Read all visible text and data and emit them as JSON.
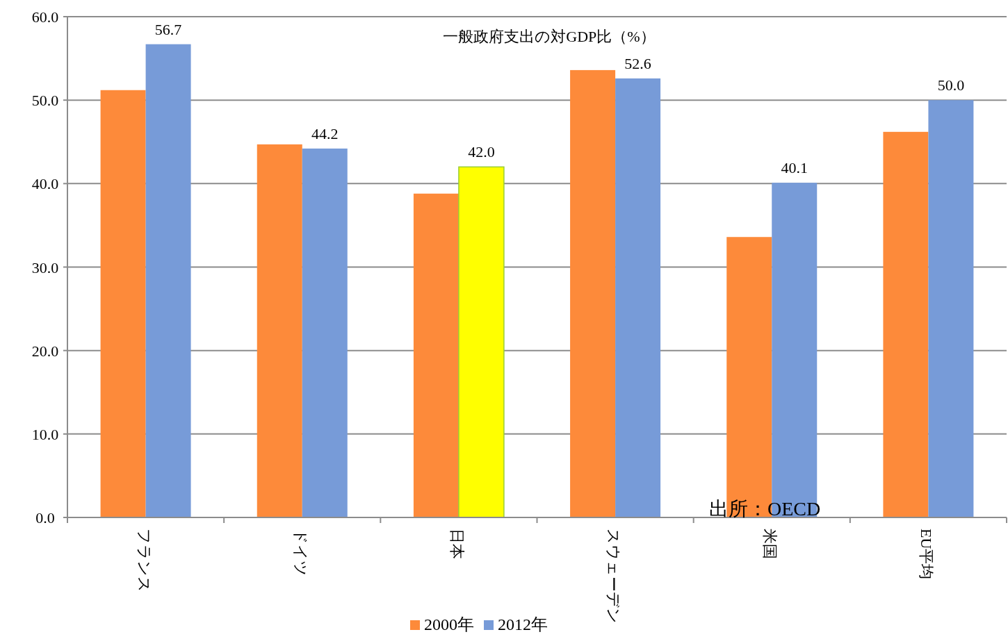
{
  "chart_data": {
    "type": "bar",
    "title": "一般政府支出の対GDP比（%）",
    "categories": [
      "フランス",
      "ドイツ",
      "日本",
      "スウェーデン",
      "米国",
      "EU平均"
    ],
    "series": [
      {
        "name": "2000年",
        "color": "#fd8a3a",
        "values": [
          51.2,
          44.7,
          38.8,
          53.6,
          33.6,
          46.2
        ]
      },
      {
        "name": "2012年",
        "color": "#779bd8",
        "colors": [
          "#779bd8",
          "#779bd8",
          "#ffff00",
          "#779bd8",
          "#779bd8",
          "#779bd8"
        ],
        "values": [
          56.7,
          44.2,
          42.0,
          52.6,
          40.1,
          50.0
        ],
        "value_labels": [
          "56.7",
          "44.2",
          "42.0",
          "52.6",
          "40.1",
          "50.0"
        ]
      }
    ],
    "ylim": [
      0,
      60
    ],
    "yticks": [
      {
        "value": 0,
        "label": "0.0"
      },
      {
        "value": 10,
        "label": "10.0"
      },
      {
        "value": 20,
        "label": "20.0"
      },
      {
        "value": 30,
        "label": "30.0"
      },
      {
        "value": 40,
        "label": "40.0"
      },
      {
        "value": 50,
        "label": "50.0"
      },
      {
        "value": 60,
        "label": "60.0"
      }
    ],
    "grid": "y",
    "legend": "bottom",
    "annotations": [
      "出所：OECD"
    ]
  }
}
